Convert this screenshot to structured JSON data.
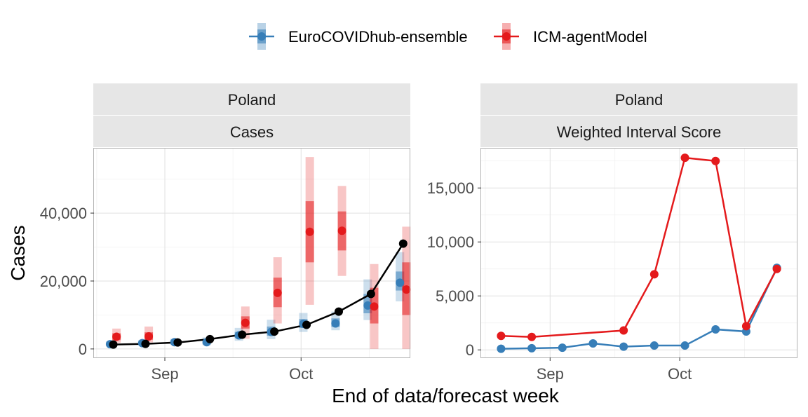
{
  "legend": {
    "position": "top",
    "items": [
      {
        "name": "EuroCOVIDhub-ensemble",
        "color": "#377EB8"
      },
      {
        "name": "ICM-agentModel",
        "color": "#E41A1C"
      }
    ]
  },
  "x_axis": {
    "label": "End of data/forecast week",
    "ticks": [
      "Sep",
      "Oct"
    ]
  },
  "chart_data": [
    {
      "type": "line",
      "strip": [
        "Poland",
        "Cases"
      ],
      "ylabel": "Cases",
      "xlim": [
        -0.6,
        9.2
      ],
      "ylim": [
        -2500,
        59000
      ],
      "y_ticks": [
        0,
        20000,
        40000
      ],
      "y_tick_labels": [
        "0",
        "20,000",
        "40,000"
      ],
      "x_ticks": [
        {
          "label": "Sep",
          "x": 1.6
        },
        {
          "label": "Oct",
          "x": 5.83
        }
      ],
      "grid": true,
      "observed": {
        "color": "#000000",
        "x": [
          0,
          1,
          2,
          3,
          4,
          5,
          6,
          7,
          8,
          9
        ],
        "y": [
          1300,
          1500,
          1900,
          2900,
          4200,
          5100,
          7100,
          11000,
          16200,
          31000
        ]
      },
      "forecasts": [
        {
          "name": "EuroCOVIDhub-ensemble",
          "color": "#377EB8",
          "points": [
            {
              "x": -0.1,
              "median": 1400,
              "inner": [
                1100,
                1800
              ],
              "outer": [
                900,
                2200
              ]
            },
            {
              "x": 0.9,
              "median": 1700,
              "inner": [
                1300,
                2100
              ],
              "outer": [
                1000,
                2600
              ]
            },
            {
              "x": 1.9,
              "median": 2000,
              "inner": [
                1600,
                2500
              ],
              "outer": [
                1200,
                3000
              ]
            },
            {
              "x": 2.9,
              "median": 2000,
              "inner": [
                1500,
                2700
              ],
              "outer": [
                1100,
                3400
              ]
            },
            {
              "x": 3.9,
              "median": 4000,
              "inner": [
                3200,
                5000
              ],
              "outer": [
                2400,
                6200
              ]
            },
            {
              "x": 4.9,
              "median": 5000,
              "inner": [
                3900,
                6600
              ],
              "outer": [
                2900,
                8600
              ]
            },
            {
              "x": 5.9,
              "median": 7400,
              "inner": [
                6200,
                8800
              ],
              "outer": [
                5000,
                10600
              ]
            },
            {
              "x": 6.9,
              "median": 7500,
              "inner": [
                6500,
                9000
              ],
              "outer": [
                5500,
                11000
              ]
            },
            {
              "x": 7.9,
              "median": 12800,
              "inner": [
                10500,
                16200
              ],
              "outer": [
                8500,
                20500
              ]
            },
            {
              "x": 8.9,
              "median": 19500,
              "inner": [
                17200,
                22800
              ],
              "outer": [
                14000,
                28500
              ]
            }
          ]
        },
        {
          "name": "ICM-agentModel",
          "color": "#E41A1C",
          "points": [
            {
              "x": 0.1,
              "median": 3600,
              "inner": [
                2600,
                4600
              ],
              "outer": [
                1800,
                6000
              ]
            },
            {
              "x": 1.1,
              "median": 3700,
              "inner": [
                2700,
                4900
              ],
              "outer": [
                1900,
                6600
              ]
            },
            {
              "x": 4.1,
              "median": 7700,
              "inner": [
                6000,
                9600
              ],
              "outer": [
                3000,
                12500
              ]
            },
            {
              "x": 5.1,
              "median": 16500,
              "inner": [
                12300,
                21000
              ],
              "outer": [
                7500,
                27000
              ]
            },
            {
              "x": 6.1,
              "median": 34500,
              "inner": [
                25500,
                43500
              ],
              "outer": [
                13000,
                56500
              ]
            },
            {
              "x": 7.1,
              "median": 34800,
              "inner": [
                29000,
                40500
              ],
              "outer": [
                21500,
                48000
              ]
            },
            {
              "x": 8.1,
              "median": 12500,
              "inner": [
                7500,
                18000
              ],
              "outer": [
                0,
                25000
              ]
            },
            {
              "x": 9.1,
              "median": 17500,
              "inner": [
                10000,
                25500
              ],
              "outer": [
                0,
                36000
              ]
            }
          ]
        }
      ]
    },
    {
      "type": "line",
      "strip": [
        "Poland",
        "Weighted Interval Score"
      ],
      "ylabel": "",
      "xlim": [
        -0.65,
        9.65
      ],
      "ylim": [
        -700,
        18650
      ],
      "y_ticks": [
        0,
        5000,
        10000,
        15000
      ],
      "y_tick_labels": [
        "0",
        "5,000",
        "10,000",
        "15,000"
      ],
      "x_ticks": [
        {
          "label": "Sep",
          "x": 1.6
        },
        {
          "label": "Oct",
          "x": 5.83
        }
      ],
      "grid": true,
      "series": [
        {
          "name": "EuroCOVIDhub-ensemble",
          "color": "#377EB8",
          "x": [
            0,
            1,
            2,
            3,
            4,
            5,
            6,
            7,
            8,
            9
          ],
          "values": [
            100,
            150,
            200,
            600,
            300,
            400,
            400,
            1900,
            1700,
            7600
          ]
        },
        {
          "name": "ICM-agentModel",
          "color": "#E41A1C",
          "x": [
            0,
            1,
            4,
            5,
            6,
            7,
            8,
            9
          ],
          "values": [
            1300,
            1200,
            1800,
            7000,
            17800,
            17500,
            2200,
            7500
          ]
        }
      ]
    }
  ]
}
